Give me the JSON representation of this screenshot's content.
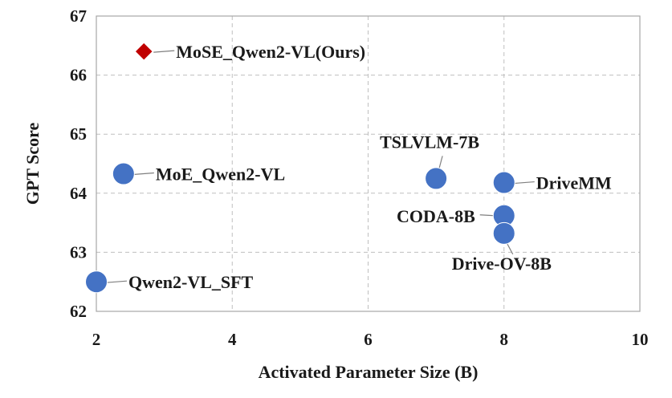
{
  "chart_data": {
    "type": "scatter",
    "title": "",
    "xlabel": "Activated Parameter Size (B)",
    "ylabel": "GPT Score",
    "xlim": [
      2,
      10
    ],
    "ylim": [
      62,
      67
    ],
    "xticks": [
      "2",
      "4",
      "6",
      "8",
      "10"
    ],
    "yticks": [
      "62",
      "63",
      "64",
      "65",
      "66",
      "67"
    ],
    "grid": true,
    "colors": {
      "marker": "#4472C4",
      "highlight": "#C00000",
      "grid": "#bfbfbf",
      "leader": "#7f7f7f"
    },
    "points": [
      {
        "label": "MoSE_Qwen2-VL(Ours)",
        "x": 2.7,
        "y": 66.4,
        "marker": "diamond",
        "color": "#C00000",
        "label_side": "right"
      },
      {
        "label": "MoE_Qwen2-VL",
        "x": 2.4,
        "y": 64.33,
        "marker": "circle",
        "color": "#4472C4",
        "label_side": "right"
      },
      {
        "label": "TSLVLM-7B",
        "x": 7.0,
        "y": 64.25,
        "marker": "circle",
        "color": "#4472C4",
        "label_side": "above"
      },
      {
        "label": "DriveMM",
        "x": 8.0,
        "y": 64.18,
        "marker": "circle",
        "color": "#4472C4",
        "label_side": "right"
      },
      {
        "label": "CODA-8B",
        "x": 8.0,
        "y": 63.62,
        "marker": "circle",
        "color": "#4472C4",
        "label_side": "left"
      },
      {
        "label": "Drive-OV-8B",
        "x": 8.0,
        "y": 63.32,
        "marker": "circle",
        "color": "#4472C4",
        "label_side": "below"
      },
      {
        "label": "Qwen2-VL_SFT",
        "x": 2.0,
        "y": 62.5,
        "marker": "circle",
        "color": "#4472C4",
        "label_side": "right"
      }
    ]
  }
}
